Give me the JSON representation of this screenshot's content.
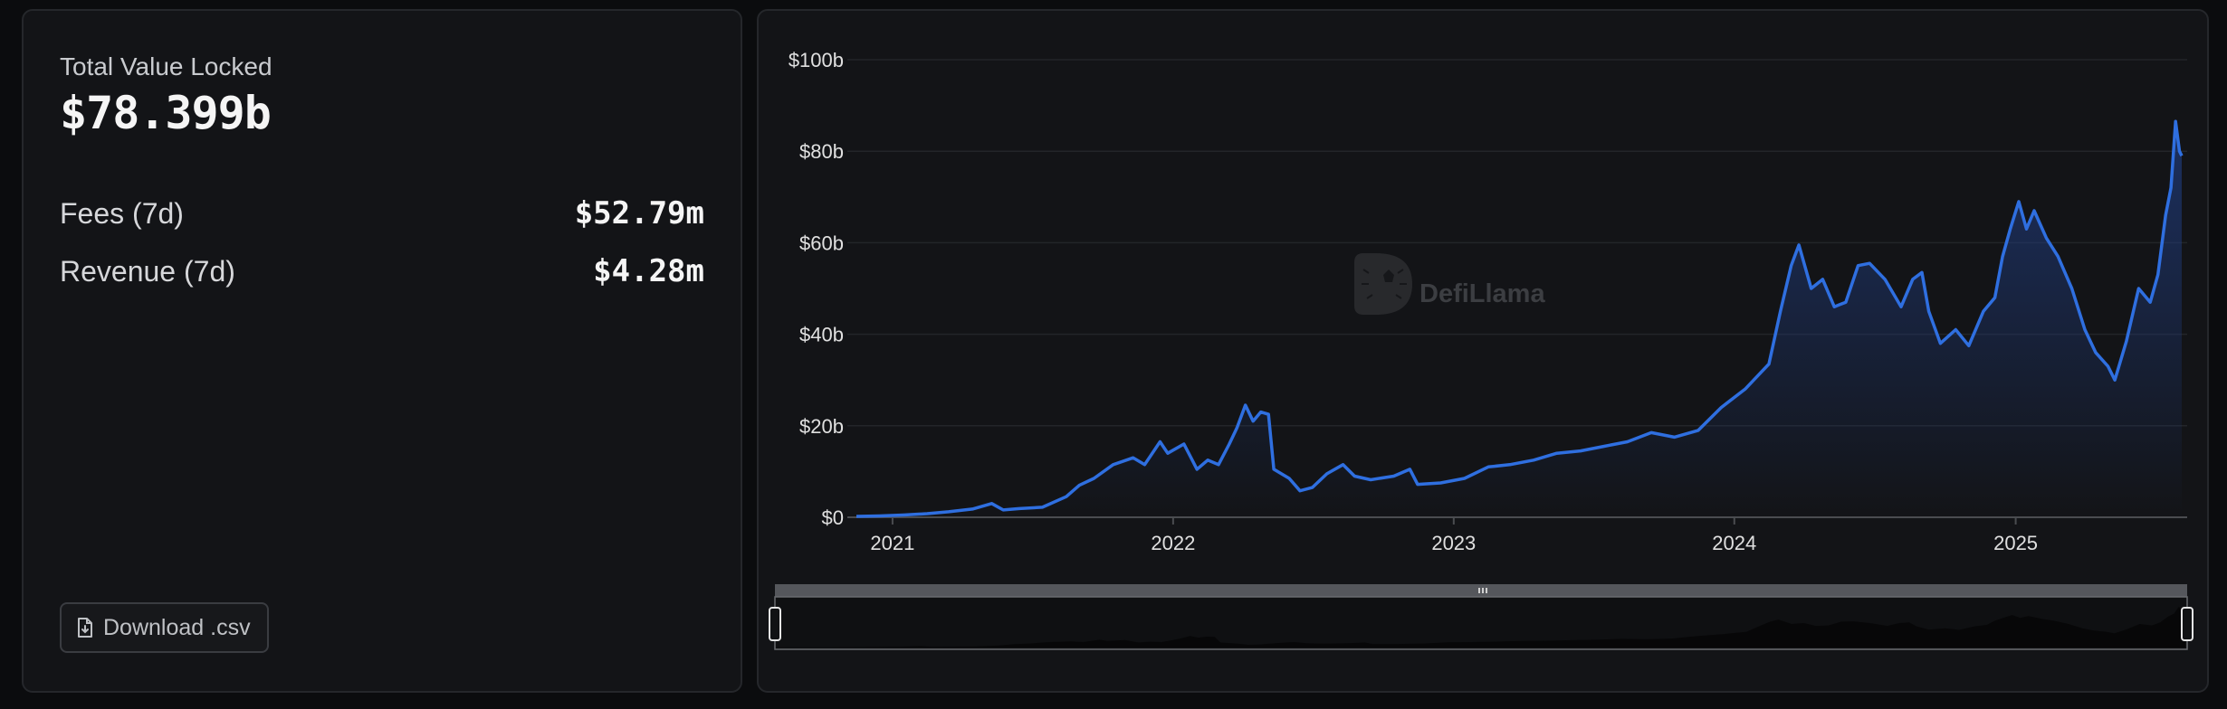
{
  "stats": {
    "tvl_label": "Total Value Locked",
    "tvl_value": "$78.399b",
    "metrics": [
      {
        "label": "Fees (7d)",
        "value": "$52.79m"
      },
      {
        "label": "Revenue (7d)",
        "value": "$4.28m"
      }
    ],
    "download_label": "Download .csv",
    "download_icon": "file-download-icon"
  },
  "watermark": {
    "text": "DefiLlama",
    "icon": "llama-logo"
  },
  "colors": {
    "line": "#2f6fe0",
    "area_top": "#1f3a7a",
    "panel_bg": "#131417",
    "grid": "#232529"
  },
  "chart_data": {
    "type": "area",
    "title": "",
    "xlabel": "",
    "ylabel": "",
    "ylim": [
      0,
      100
    ],
    "y_unit": "$ billions",
    "y_ticks": [
      {
        "v": 0,
        "label": "$0"
      },
      {
        "v": 20,
        "label": "$20b"
      },
      {
        "v": 40,
        "label": "$40b"
      },
      {
        "v": 60,
        "label": "$60b"
      },
      {
        "v": 80,
        "label": "$80b"
      },
      {
        "v": 100,
        "label": "$100b"
      }
    ],
    "x_ticks": [
      "2021",
      "2022",
      "2023",
      "2024",
      "2025"
    ],
    "xlim": [
      "2020-11-15",
      "2025-08-05"
    ],
    "grid": true,
    "legend": "none",
    "series": [
      {
        "points": [
          [
            "2020-11-15",
            0.2
          ],
          [
            "2020-12-15",
            0.3
          ],
          [
            "2021-01-15",
            0.5
          ],
          [
            "2021-02-15",
            0.8
          ],
          [
            "2021-03-15",
            1.2
          ],
          [
            "2021-04-15",
            1.8
          ],
          [
            "2021-05-10",
            3.0
          ],
          [
            "2021-05-25",
            1.6
          ],
          [
            "2021-06-15",
            1.9
          ],
          [
            "2021-07-15",
            2.2
          ],
          [
            "2021-08-15",
            4.5
          ],
          [
            "2021-09-01",
            7.0
          ],
          [
            "2021-09-20",
            8.5
          ],
          [
            "2021-10-15",
            11.5
          ],
          [
            "2021-11-10",
            13.0
          ],
          [
            "2021-11-25",
            11.5
          ],
          [
            "2021-12-15",
            16.5
          ],
          [
            "2021-12-25",
            14.0
          ],
          [
            "2022-01-15",
            16.0
          ],
          [
            "2022-02-01",
            10.5
          ],
          [
            "2022-02-15",
            12.5
          ],
          [
            "2022-03-01",
            11.5
          ],
          [
            "2022-03-15",
            16.0
          ],
          [
            "2022-03-25",
            19.5
          ],
          [
            "2022-04-05",
            24.5
          ],
          [
            "2022-04-15",
            21.0
          ],
          [
            "2022-04-25",
            23.0
          ],
          [
            "2022-05-05",
            22.5
          ],
          [
            "2022-05-12",
            10.5
          ],
          [
            "2022-06-01",
            8.5
          ],
          [
            "2022-06-15",
            5.8
          ],
          [
            "2022-07-01",
            6.5
          ],
          [
            "2022-07-20",
            9.5
          ],
          [
            "2022-08-10",
            11.5
          ],
          [
            "2022-08-25",
            9.0
          ],
          [
            "2022-09-15",
            8.2
          ],
          [
            "2022-10-15",
            9.0
          ],
          [
            "2022-11-05",
            10.5
          ],
          [
            "2022-11-15",
            7.2
          ],
          [
            "2022-12-15",
            7.5
          ],
          [
            "2023-01-15",
            8.5
          ],
          [
            "2023-02-15",
            11.0
          ],
          [
            "2023-03-15",
            11.5
          ],
          [
            "2023-04-15",
            12.5
          ],
          [
            "2023-05-15",
            14.0
          ],
          [
            "2023-06-15",
            14.5
          ],
          [
            "2023-07-15",
            15.5
          ],
          [
            "2023-08-15",
            16.5
          ],
          [
            "2023-09-15",
            18.5
          ],
          [
            "2023-10-15",
            17.5
          ],
          [
            "2023-11-15",
            19.0
          ],
          [
            "2023-12-15",
            24.0
          ],
          [
            "2024-01-15",
            28.0
          ],
          [
            "2024-02-01",
            31.0
          ],
          [
            "2024-02-15",
            33.5
          ],
          [
            "2024-03-01",
            45.0
          ],
          [
            "2024-03-15",
            55.0
          ],
          [
            "2024-03-25",
            59.5
          ],
          [
            "2024-04-10",
            50.0
          ],
          [
            "2024-04-25",
            52.0
          ],
          [
            "2024-05-10",
            46.0
          ],
          [
            "2024-05-25",
            47.0
          ],
          [
            "2024-06-10",
            55.0
          ],
          [
            "2024-06-25",
            55.5
          ],
          [
            "2024-07-15",
            52.0
          ],
          [
            "2024-08-05",
            46.0
          ],
          [
            "2024-08-20",
            52.0
          ],
          [
            "2024-09-01",
            53.5
          ],
          [
            "2024-09-10",
            45.0
          ],
          [
            "2024-09-25",
            38.0
          ],
          [
            "2024-10-15",
            41.0
          ],
          [
            "2024-11-01",
            37.5
          ],
          [
            "2024-11-20",
            45.0
          ],
          [
            "2024-12-05",
            48.0
          ],
          [
            "2024-12-15",
            57.0
          ],
          [
            "2024-12-25",
            63.0
          ],
          [
            "2025-01-05",
            69.0
          ],
          [
            "2025-01-15",
            63.0
          ],
          [
            "2025-01-25",
            67.0
          ],
          [
            "2025-02-10",
            61.0
          ],
          [
            "2025-02-25",
            57.0
          ],
          [
            "2025-03-15",
            50.0
          ],
          [
            "2025-04-01",
            41.0
          ],
          [
            "2025-04-15",
            36.0
          ],
          [
            "2025-05-01",
            33.0
          ],
          [
            "2025-05-10",
            30.0
          ],
          [
            "2025-05-25",
            38.5
          ],
          [
            "2025-06-10",
            50.0
          ],
          [
            "2025-06-25",
            47.0
          ],
          [
            "2025-07-05",
            53.0
          ],
          [
            "2025-07-15",
            66.0
          ],
          [
            "2025-07-22",
            72.0
          ],
          [
            "2025-07-28",
            86.5
          ],
          [
            "2025-08-02",
            80.0
          ],
          [
            "2025-08-05",
            79.0
          ]
        ]
      }
    ]
  }
}
